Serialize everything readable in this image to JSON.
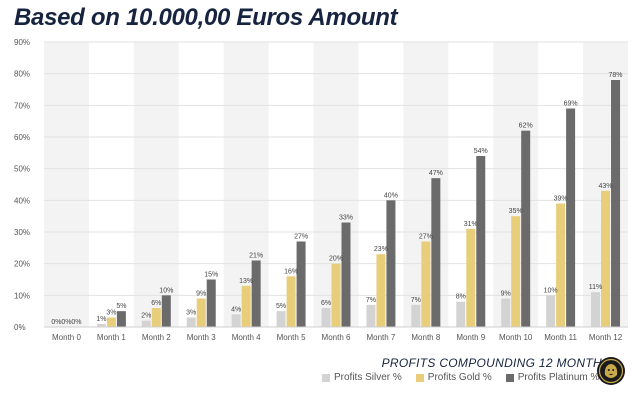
{
  "header": {
    "title": "Based on 10.000,00 Euros Amount"
  },
  "footer": {
    "subtitle": "PROFITS COMPOUNDING 12 MONTH"
  },
  "colors": {
    "silver": "#d3d3d3",
    "gold": "#e8ce7a",
    "platinum": "#6b6b6b",
    "band": "#f3f3f3",
    "grid": "#e2e2e2",
    "text": "#555555",
    "title": "#16243f"
  },
  "chart_data": {
    "type": "bar",
    "categories": [
      "Month 0",
      "Month 1",
      "Month 2",
      "Month 3",
      "Month 4",
      "Month 5",
      "Month 6",
      "Month 7",
      "Month 8",
      "Month 9",
      "Month 10",
      "Month 11",
      "Month 12"
    ],
    "series": [
      {
        "name": "Profits Silver %",
        "color": "#d3d3d3",
        "values": [
          0,
          1,
          2,
          3,
          4,
          5,
          6,
          7,
          7,
          8,
          9,
          10,
          11
        ]
      },
      {
        "name": "Profits Gold %",
        "color": "#e8ce7a",
        "values": [
          0,
          3,
          6,
          9,
          13,
          16,
          20,
          23,
          27,
          31,
          35,
          39,
          43
        ]
      },
      {
        "name": "Profits Platinum %",
        "color": "#6b6b6b",
        "values": [
          0,
          5,
          10,
          15,
          21,
          27,
          33,
          40,
          47,
          54,
          62,
          69,
          78
        ]
      }
    ],
    "yticks": [
      "0%",
      "10%",
      "20%",
      "30%",
      "40%",
      "50%",
      "60%",
      "70%",
      "80%",
      "90%"
    ],
    "ylim": [
      0,
      90
    ],
    "value_suffix": "%",
    "grid": true,
    "legend_position": "bottom-right"
  }
}
